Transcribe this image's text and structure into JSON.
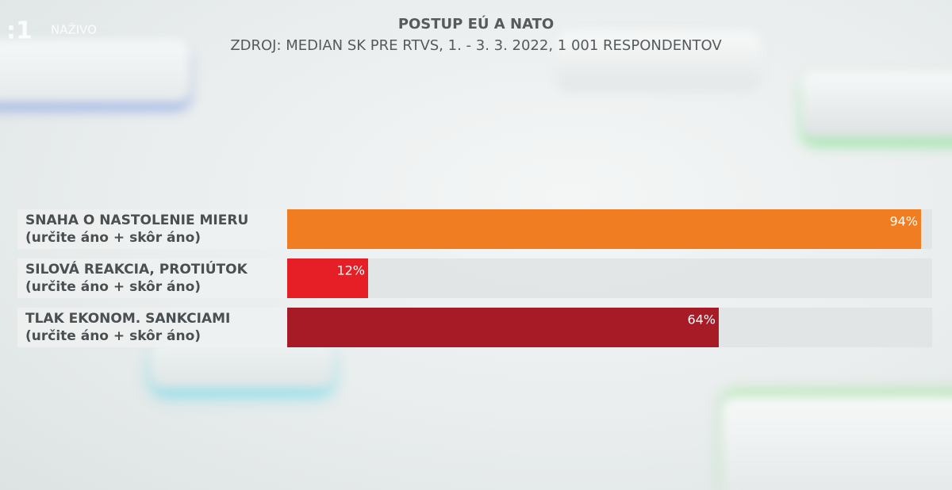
{
  "overlay": {
    "live_label": "NAŽIVO"
  },
  "chart_data": {
    "type": "bar",
    "orientation": "horizontal",
    "title": "POSTUP EÚ A NATO",
    "subtitle": "ZDROJ: MEDIAN SK PRE RTVS, 1. - 3. 3. 2022, 1 001 RESPONDENTOV",
    "categories": [
      "SNAHA O NASTOLENIE MIERU",
      "SILOVÁ REAKCIA, PROTIÚTOK",
      "TLAK EKONOM. SANKCIAMI"
    ],
    "category_sublabels": [
      "(určite áno + skôr áno)",
      "(určite áno + skôr áno)",
      "(určite áno + skôr áno)"
    ],
    "values": [
      94,
      12,
      64
    ],
    "value_labels": [
      "94%",
      "12%",
      "64%"
    ],
    "colors": [
      "#f07d22",
      "#e61f26",
      "#a71b26"
    ]
  }
}
